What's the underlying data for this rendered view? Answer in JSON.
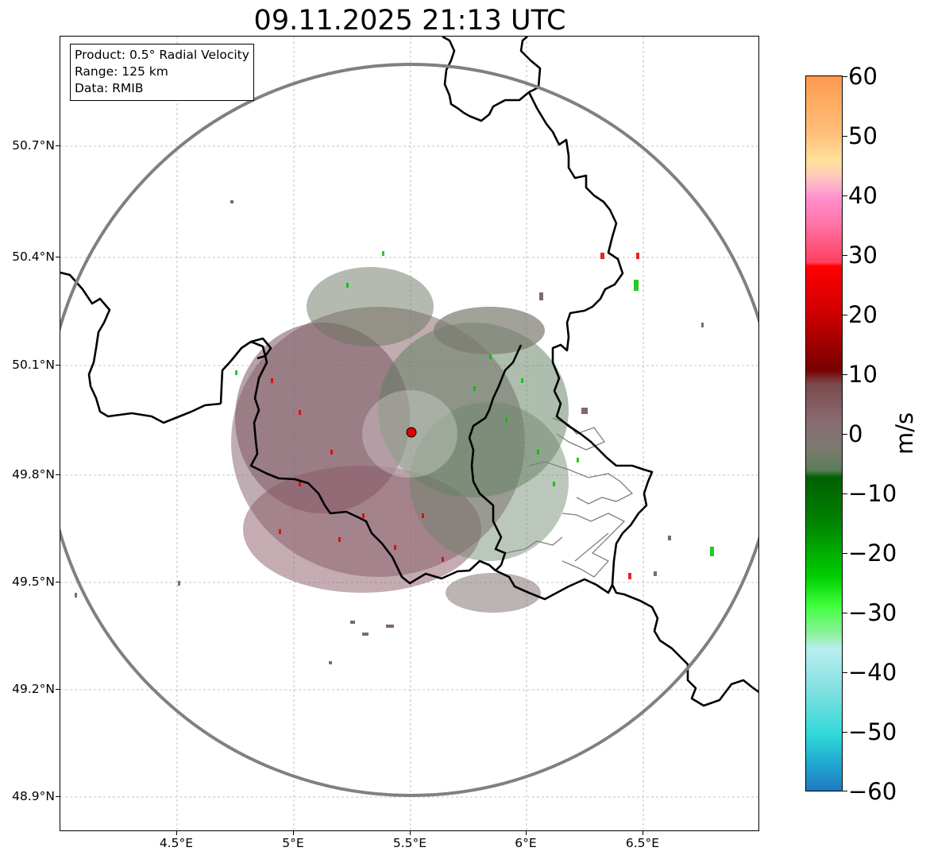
{
  "title": "09.11.2025 21:13 UTC",
  "info": {
    "product": "Product: 0.5° Radial Velocity",
    "range": "Range: 125 km",
    "data": "Data: RMIB"
  },
  "axes": {
    "lat_ticks": [
      "50.7°N",
      "50.4°N",
      "50.1°N",
      "49.8°N",
      "49.5°N",
      "49.2°N",
      "48.9°N"
    ],
    "lon_ticks": [
      "4.5°E",
      "5°E",
      "5.5°E",
      "6°E",
      "6.5°E"
    ]
  },
  "colorbar": {
    "label": "m/s",
    "ticks": [
      "60",
      "50",
      "40",
      "30",
      "20",
      "10",
      "0",
      "−10",
      "−20",
      "−30",
      "−40",
      "−50",
      "−60"
    ],
    "min": -60,
    "max": 60
  },
  "colors": {
    "range_ring": "#808080",
    "border": "#000000",
    "admin_border": "#808080",
    "radar_site": "#e00000",
    "grid": "#b0b0b0"
  },
  "map": {
    "radar_site_lon": 5.5,
    "radar_site_lat": 49.91,
    "range_km": 125
  }
}
